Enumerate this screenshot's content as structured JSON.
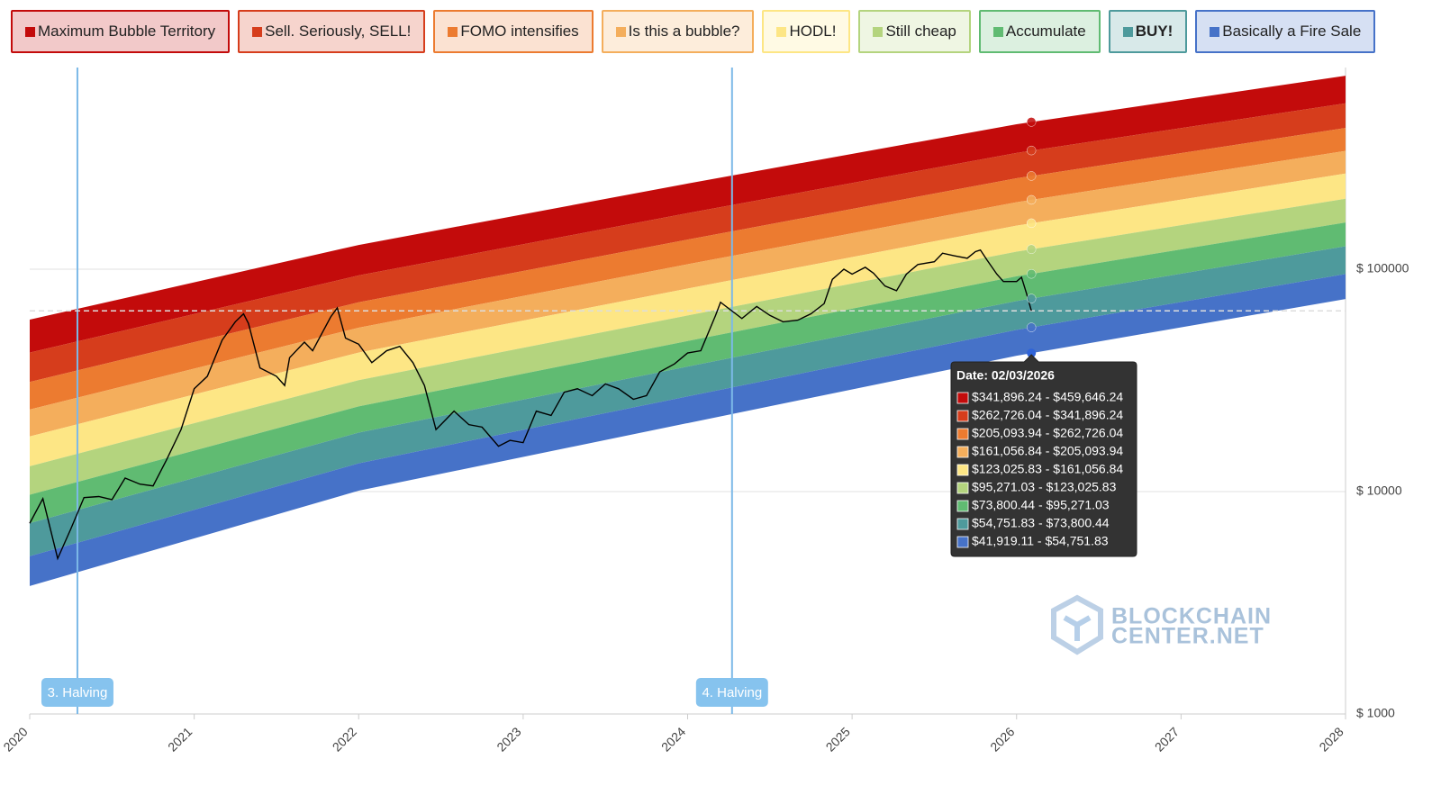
{
  "chart_data": {
    "type": "rainbow",
    "x": [
      2020,
      2022,
      2024,
      2026,
      2028
    ],
    "series": [
      {
        "name": "Maximum Bubble Territory",
        "color": "#c30b0b",
        "values": [
          59300,
          128500,
          242700,
          448700,
          741300
        ]
      },
      {
        "name": "Sell. Seriously, SELL!",
        "color": "#d63d1c",
        "values": [
          42170,
          93760,
          178600,
          333400,
          557200
        ]
      },
      {
        "name": "FOMO intensifies",
        "color": "#ec7b30",
        "values": [
          31120,
          70960,
          135800,
          256400,
          431500
        ]
      },
      {
        "name": "Is this a bubble?",
        "color": "#f4ae5c",
        "values": [
          23390,
          54580,
          105200,
          200000,
          340400
        ]
      },
      {
        "name": "HODL!",
        "color": "#fde685",
        "values": [
          17700,
          42170,
          81850,
          157000,
          269200
        ]
      },
      {
        "name": "Still cheap",
        "color": "#b4d47e",
        "values": [
          13000,
          31700,
          61940,
          119900,
          207500
        ]
      },
      {
        "name": "Accumulate",
        "color": "#60bb72",
        "values": [
          9680,
          24150,
          47530,
          92900,
          162200
        ]
      },
      {
        "name": "BUY!",
        "color": "#4e9a9c",
        "values": [
          7210,
          18410,
          36480,
          71940,
          126800
        ]
      },
      {
        "name": "Basically a Fire Sale",
        "color": "#4672c8",
        "values": [
          5120,
          13400,
          26790,
          53330,
          95060
        ]
      }
    ],
    "floor": [
      3760,
      10090,
      20320,
      40830,
      73450
    ],
    "price": {
      "color": "#000000",
      "x": [
        2020.0,
        2020.08,
        2020.17,
        2020.25,
        2020.33,
        2020.42,
        2020.5,
        2020.58,
        2020.67,
        2020.75,
        2020.83,
        2020.92,
        2021.0,
        2021.08,
        2021.17,
        2021.25,
        2021.3,
        2021.33,
        2021.4,
        2021.5,
        2021.55,
        2021.58,
        2021.67,
        2021.72,
        2021.83,
        2021.87,
        2021.92,
        2022.0,
        2022.08,
        2022.17,
        2022.25,
        2022.33,
        2022.4,
        2022.47,
        2022.5,
        2022.58,
        2022.67,
        2022.75,
        2022.85,
        2022.92,
        2023.0,
        2023.08,
        2023.17,
        2023.25,
        2023.33,
        2023.42,
        2023.5,
        2023.58,
        2023.67,
        2023.75,
        2023.83,
        2023.92,
        2024.0,
        2024.08,
        2024.17,
        2024.2,
        2024.33,
        2024.42,
        2024.5,
        2024.58,
        2024.67,
        2024.75,
        2024.83,
        2024.88,
        2024.95,
        2025.0,
        2025.08,
        2025.13,
        2025.2,
        2025.27,
        2025.33,
        2025.4,
        2025.5,
        2025.55,
        2025.62,
        2025.7,
        2025.75,
        2025.78,
        2025.82,
        2025.88,
        2025.92,
        2026.0,
        2026.03,
        2026.06,
        2026.09
      ],
      "values": [
        7200,
        9300,
        5000,
        6800,
        9400,
        9500,
        9200,
        11500,
        10800,
        10600,
        13800,
        19000,
        29000,
        33000,
        48000,
        58000,
        63000,
        57000,
        36000,
        33000,
        30000,
        40000,
        47000,
        43000,
        61000,
        67000,
        49000,
        46000,
        38000,
        43000,
        45000,
        38000,
        30000,
        19000,
        20000,
        23000,
        20000,
        19500,
        16000,
        17000,
        16600,
        23000,
        22000,
        28000,
        29000,
        27000,
        30500,
        29000,
        26000,
        27000,
        34500,
        37500,
        42000,
        43000,
        62000,
        71000,
        60000,
        68000,
        62000,
        58000,
        59000,
        63000,
        70000,
        90000,
        100000,
        95000,
        102000,
        96000,
        84000,
        80000,
        95000,
        105000,
        108000,
        118000,
        115000,
        112000,
        120000,
        122000,
        110000,
        95000,
        88000,
        88000,
        92000,
        78000,
        65000
      ]
    },
    "xlim": [
      2020,
      2028
    ],
    "xticks": [
      2020,
      2021,
      2022,
      2023,
      2024,
      2025,
      2026,
      2027,
      2028
    ],
    "ylim": [
      1000,
      807000
    ],
    "log_y": true,
    "yticks": [
      {
        "value": 1000,
        "label": "$ 1000"
      },
      {
        "value": 10000,
        "label": "$ 10000"
      },
      {
        "value": 100000,
        "label": "$ 100000"
      }
    ],
    "grid": true,
    "halvings": [
      {
        "x": 2020.29,
        "label": "3. Halving"
      },
      {
        "x": 2024.27,
        "label": "4. Halving"
      }
    ],
    "tooltip": {
      "title": "Date: 02/03/2026",
      "x": 2026.09,
      "rows": [
        {
          "low": 341896.24,
          "high": 459646.24,
          "label": "$341,896.24 - $459,646.24"
        },
        {
          "low": 262726.04,
          "high": 341896.24,
          "label": "$262,726.04 - $341,896.24"
        },
        {
          "low": 205093.94,
          "high": 262726.04,
          "label": "$205,093.94 - $262,726.04"
        },
        {
          "low": 161056.84,
          "high": 205093.94,
          "label": "$161,056.84 - $205,093.94"
        },
        {
          "low": 123025.83,
          "high": 161056.84,
          "label": "$123,025.83 - $161,056.84"
        },
        {
          "low": 95271.03,
          "high": 123025.83,
          "label": "$95,271.03 - $123,025.83"
        },
        {
          "low": 73800.44,
          "high": 95271.03,
          "label": "$73,800.44 - $95,271.03"
        },
        {
          "low": 54751.83,
          "high": 73800.44,
          "label": "$54,751.83 - $73,800.44"
        },
        {
          "low": 41919.11,
          "high": 54751.83,
          "label": "$41,919.11 - $54,751.83"
        }
      ]
    },
    "watermark": [
      "BLOCKCHAIN",
      "CENTER.NET"
    ]
  }
}
